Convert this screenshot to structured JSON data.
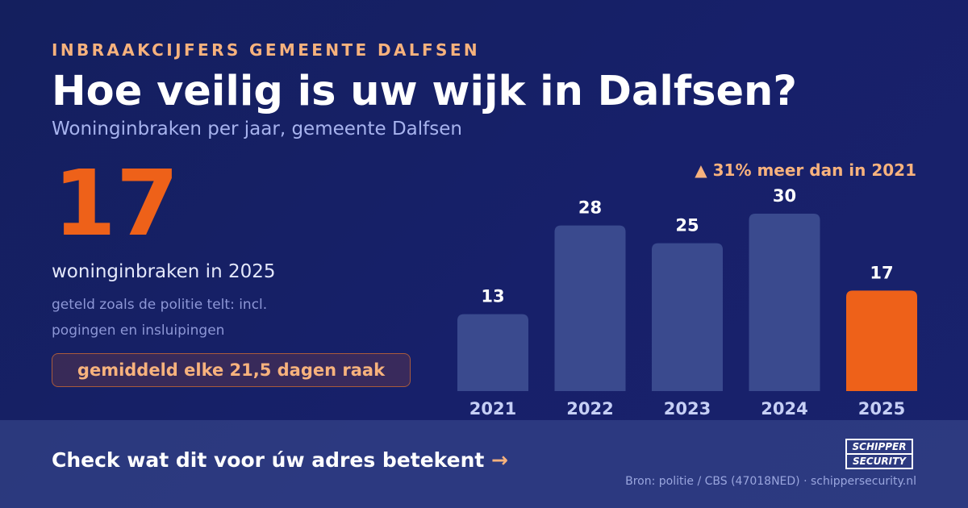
{
  "header": {
    "eyebrow": "INBRAAKCIJFERS GEMEENTE DALFSEN",
    "title": "Hoe veilig is uw wijk in Dalfsen?",
    "subtitle": "Woninginbraken per jaar, gemeente Dalfsen"
  },
  "highlight": {
    "number": "17",
    "label": "woninginbraken in 2025",
    "note": "geteld zoals de politie telt: incl. pogingen en insluipingen",
    "pill": "gemiddeld elke 21,5 dagen raak"
  },
  "change_label": "▲ 31% meer dan in 2021",
  "chart_data": {
    "type": "bar",
    "categories": [
      "2021",
      "2022",
      "2023",
      "2024",
      "2025"
    ],
    "values": [
      13,
      28,
      25,
      30,
      17
    ],
    "title": "",
    "xlabel": "",
    "ylabel": "",
    "ylim": [
      0,
      30
    ],
    "grid": false,
    "legend": "none",
    "highlight_category": "2025",
    "colors": {
      "default": "#3a4a8e",
      "highlight": "#ee6119",
      "value_label": "#ffffff",
      "tick_label": "#c6cff5"
    }
  },
  "footer": {
    "cta": "Check wat dit voor úw adres betekent",
    "cta_arrow": "→",
    "source": "Bron: politie / CBS (47018NED) · schippersecurity.nl",
    "logo_line1": "SCHIPPER",
    "logo_line2": "SECURITY"
  }
}
